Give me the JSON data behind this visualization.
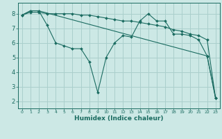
{
  "xlabel": "Humidex (Indice chaleur)",
  "bg_color": "#cce8e5",
  "grid_color": "#aacfcc",
  "line_color": "#1a6b60",
  "xlim": [
    -0.5,
    23.5
  ],
  "ylim": [
    1.5,
    8.75
  ],
  "yticks": [
    2,
    3,
    4,
    5,
    6,
    7,
    8
  ],
  "xticks": [
    0,
    1,
    2,
    3,
    4,
    5,
    6,
    7,
    8,
    9,
    10,
    11,
    12,
    13,
    14,
    15,
    16,
    17,
    18,
    19,
    20,
    21,
    22,
    23
  ],
  "line1_x": [
    0,
    1,
    2,
    3,
    4,
    5,
    6,
    7,
    8,
    9,
    10,
    11,
    12,
    13,
    14,
    15,
    16,
    17,
    18,
    19,
    20,
    21,
    22,
    23
  ],
  "line1_y": [
    7.9,
    8.2,
    8.2,
    7.2,
    6.0,
    5.8,
    5.6,
    5.6,
    4.7,
    2.6,
    5.0,
    6.0,
    6.5,
    6.4,
    7.5,
    8.0,
    7.5,
    7.5,
    6.6,
    6.6,
    6.5,
    6.2,
    5.1,
    2.2
  ],
  "line2_x": [
    0,
    1,
    2,
    22,
    23
  ],
  "line2_y": [
    7.9,
    8.2,
    8.2,
    5.1,
    2.2
  ],
  "line3_x": [
    0,
    1,
    2,
    3,
    4,
    5,
    6,
    7,
    8,
    9,
    10,
    11,
    12,
    13,
    14,
    15,
    16,
    17,
    18,
    19,
    20,
    21,
    22,
    23
  ],
  "line3_y": [
    7.9,
    8.1,
    8.1,
    8.0,
    8.0,
    8.0,
    8.0,
    7.9,
    7.9,
    7.8,
    7.7,
    7.6,
    7.5,
    7.5,
    7.4,
    7.3,
    7.2,
    7.1,
    6.9,
    6.8,
    6.6,
    6.5,
    6.2,
    2.2
  ]
}
